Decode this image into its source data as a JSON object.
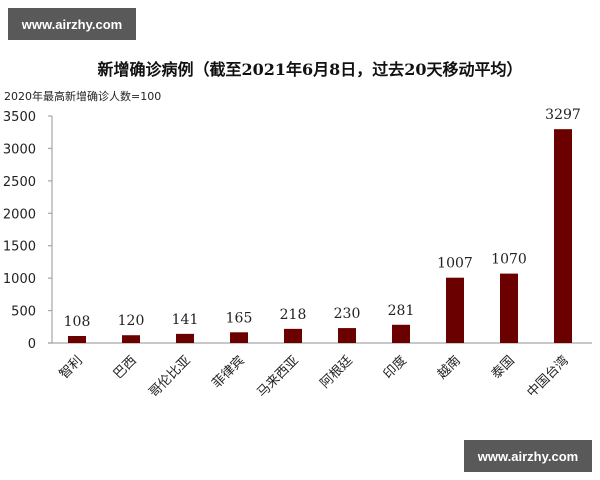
{
  "watermarks": {
    "top_left": "www.airzhy.com",
    "bottom_right": "www.airzhy.com"
  },
  "chart_data": {
    "type": "bar",
    "title": "新增确诊病例（截至2021年6月8日，过去20天移动平均）",
    "subtitle": "2020年最高新增确诊人数=100",
    "xlabel": "",
    "ylabel": "",
    "ylim": [
      0,
      3500
    ],
    "yticks": [
      0,
      500,
      1000,
      1500,
      2000,
      2500,
      3000,
      3500
    ],
    "categories": [
      "智利",
      "巴西",
      "哥伦比亚",
      "菲律宾",
      "马来西亚",
      "阿根廷",
      "印度",
      "越南",
      "泰国",
      "中国台湾"
    ],
    "values": [
      108,
      120,
      141,
      165,
      218,
      230,
      281,
      1007,
      1070,
      3297
    ],
    "bar_color": "#6b0000",
    "grid": false,
    "legend": null,
    "data_labels": true
  }
}
